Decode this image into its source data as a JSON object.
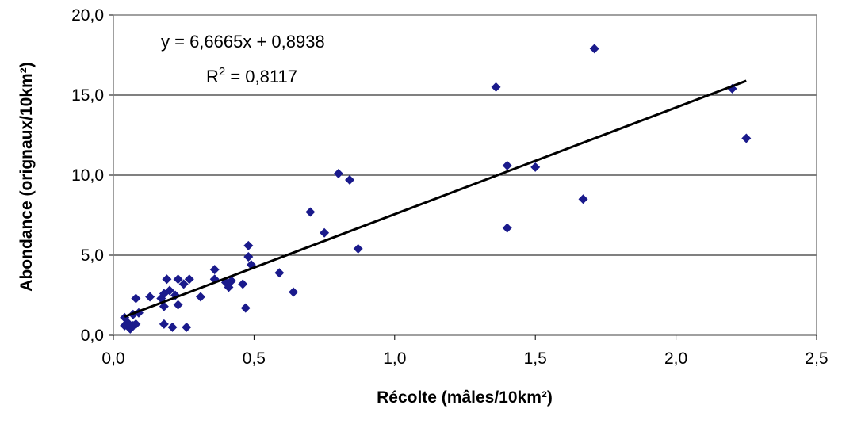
{
  "chart_data": {
    "type": "scatter",
    "xlabel": "Récolte (mâles/10km²)",
    "ylabel": "Abondance (orignaux/10km²)",
    "xlim": [
      0,
      2.5
    ],
    "ylim": [
      0,
      20
    ],
    "x_ticks": [
      "0,0",
      "0,5",
      "1,0",
      "1,5",
      "2,0",
      "2,5"
    ],
    "y_ticks": [
      "0,0",
      "5,0",
      "10,0",
      "15,0",
      "20,0"
    ],
    "grid": "horizontal",
    "marker_color": "#1a1a8c",
    "line_color": "#000000",
    "points": [
      [
        0.04,
        1.1
      ],
      [
        0.04,
        0.6
      ],
      [
        0.05,
        0.8
      ],
      [
        0.06,
        0.4
      ],
      [
        0.07,
        1.3
      ],
      [
        0.07,
        0.6
      ],
      [
        0.08,
        2.3
      ],
      [
        0.08,
        0.7
      ],
      [
        0.09,
        1.4
      ],
      [
        0.13,
        2.4
      ],
      [
        0.17,
        2.3
      ],
      [
        0.18,
        2.6
      ],
      [
        0.18,
        1.8
      ],
      [
        0.18,
        0.7
      ],
      [
        0.19,
        3.5
      ],
      [
        0.2,
        2.8
      ],
      [
        0.21,
        0.5
      ],
      [
        0.22,
        2.5
      ],
      [
        0.23,
        3.5
      ],
      [
        0.23,
        1.9
      ],
      [
        0.25,
        3.2
      ],
      [
        0.26,
        0.5
      ],
      [
        0.27,
        3.5
      ],
      [
        0.31,
        2.4
      ],
      [
        0.36,
        4.1
      ],
      [
        0.36,
        3.5
      ],
      [
        0.4,
        3.3
      ],
      [
        0.41,
        3.0
      ],
      [
        0.42,
        3.4
      ],
      [
        0.46,
        3.2
      ],
      [
        0.47,
        1.7
      ],
      [
        0.48,
        5.6
      ],
      [
        0.48,
        4.9
      ],
      [
        0.49,
        4.4
      ],
      [
        0.59,
        3.9
      ],
      [
        0.64,
        2.7
      ],
      [
        0.7,
        7.7
      ],
      [
        0.75,
        6.4
      ],
      [
        0.8,
        10.1
      ],
      [
        0.84,
        9.7
      ],
      [
        0.87,
        5.4
      ],
      [
        1.36,
        15.5
      ],
      [
        1.4,
        10.6
      ],
      [
        1.4,
        6.7
      ],
      [
        1.5,
        10.5
      ],
      [
        1.67,
        8.5
      ],
      [
        1.71,
        17.9
      ],
      [
        2.2,
        15.4
      ],
      [
        2.25,
        12.3
      ]
    ],
    "trendline": {
      "slope": 6.6665,
      "intercept": 0.8938,
      "x_range": [
        0.04,
        2.25
      ]
    },
    "annotations": {
      "equation": "y = 6,6665x + 0,8938",
      "r2_prefix": "R",
      "r2_sup": "2",
      "r2_value": " = 0,8117"
    }
  }
}
